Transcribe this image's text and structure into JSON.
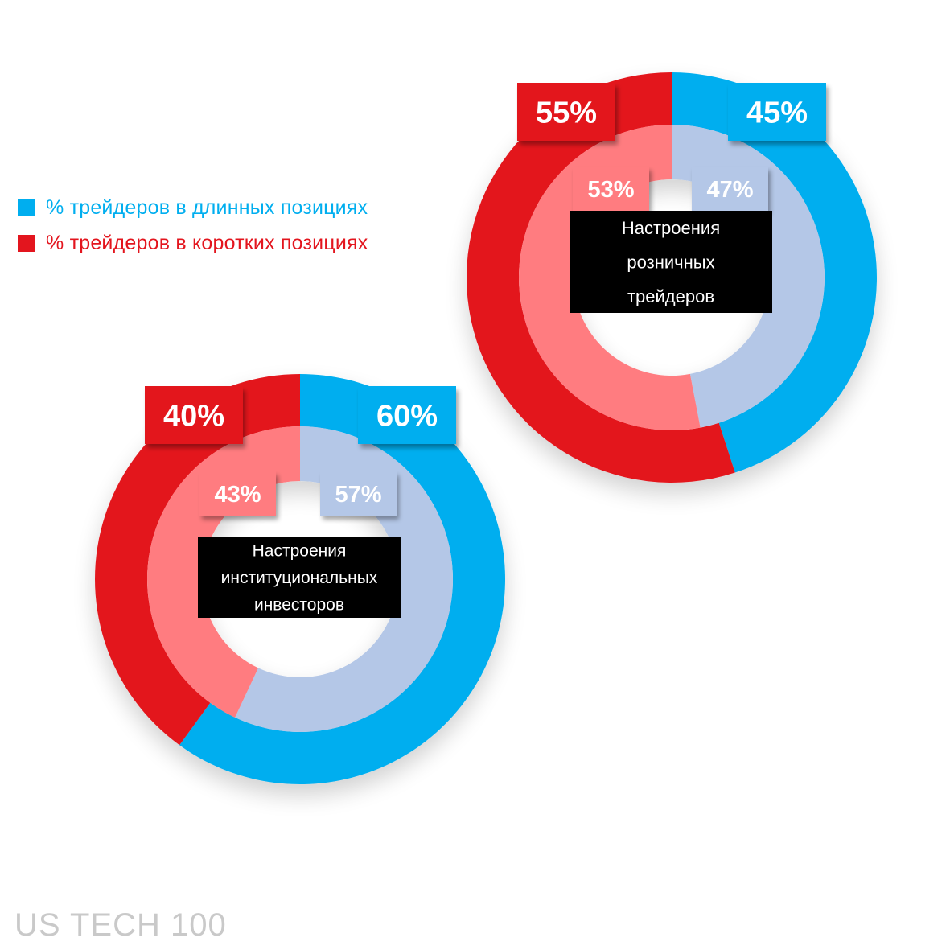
{
  "colors": {
    "long_outer": "#00aeef",
    "short_outer": "#e3151e",
    "long_inner": "#b4c7e7",
    "short_inner": "#ff7c80",
    "center_bg": "#000000",
    "center_text": "#ffffff",
    "footer": "#c9c9c9"
  },
  "legend": {
    "long_label": "% трейдеров в длинных позициях",
    "short_label": "% трейдеров в коротких позициях"
  },
  "footer": {
    "title": "US TECH 100"
  },
  "chart_data": [
    {
      "type": "pie",
      "variant": "nested-donut",
      "center_label": [
        "Настроения",
        "розничных",
        "трейдеров"
      ],
      "rings": [
        {
          "ring": "outer",
          "long_pct": 45,
          "short_pct": 55,
          "long_label": "45%",
          "short_label": "55%"
        },
        {
          "ring": "inner",
          "long_pct": 47,
          "short_pct": 53,
          "long_label": "47%",
          "short_label": "53%"
        }
      ]
    },
    {
      "type": "pie",
      "variant": "nested-donut",
      "center_label": [
        "Настроения",
        "институциональных",
        "инвесторов"
      ],
      "rings": [
        {
          "ring": "outer",
          "long_pct": 60,
          "short_pct": 40,
          "long_label": "60%",
          "short_label": "40%"
        },
        {
          "ring": "inner",
          "long_pct": 57,
          "short_pct": 43,
          "long_label": "57%",
          "short_label": "43%"
        }
      ]
    }
  ]
}
